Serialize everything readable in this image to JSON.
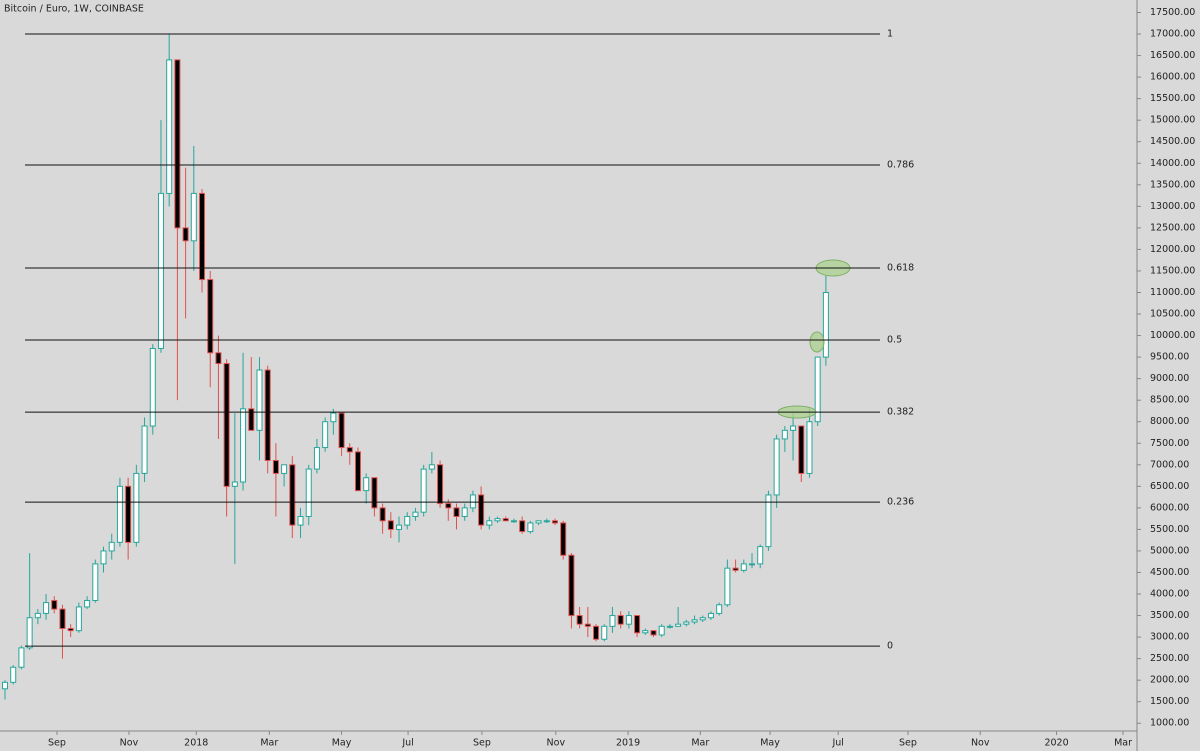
{
  "chart_data": {
    "type": "candlestick",
    "title": "Bitcoin / Euro, 1W, COINBASE",
    "up_color": "#26a69a",
    "down_color": "#e0504d",
    "open": [
      1800,
      1950,
      2300,
      2750,
      3450,
      3550,
      3850,
      3650,
      3200,
      3150,
      3700,
      3850,
      4700,
      5000,
      5200,
      6500,
      5200,
      6800,
      7900,
      9700,
      13300,
      16400,
      12500,
      12200,
      13300,
      11300,
      9600,
      9350,
      6500,
      6600,
      8300,
      7800,
      9200,
      7100,
      6800,
      7000,
      5600,
      5800,
      6900,
      7400,
      8000,
      8200,
      7400,
      7300,
      6400,
      6700,
      6000,
      5700,
      5500,
      5600,
      5800,
      5900,
      6900,
      7000,
      6100,
      6000,
      5800,
      6000,
      6300,
      5600,
      5700,
      5750,
      5700,
      5700,
      5450,
      5650,
      5700,
      5700,
      5650,
      4900,
      3500,
      3300,
      3250,
      2950,
      3250,
      3500,
      3300,
      3500,
      3100,
      3150,
      3050,
      3250,
      3250,
      3300,
      3350,
      3400,
      3450,
      3550,
      3750,
      4600,
      4550,
      4700,
      4700,
      5100,
      6300,
      7600,
      7800,
      7900,
      6800,
      8000,
      9500
    ],
    "high": [
      2000,
      2350,
      2800,
      4950,
      3650,
      4000,
      3950,
      3750,
      3300,
      3800,
      3950,
      4800,
      5100,
      5400,
      6700,
      6700,
      7000,
      8100,
      9800,
      15000,
      17000,
      16400,
      13900,
      14400,
      13400,
      11500,
      10000,
      9450,
      8200,
      9600,
      9500,
      9500,
      9300,
      7500,
      7000,
      7200,
      6000,
      7000,
      7600,
      8100,
      8300,
      8200,
      7500,
      7400,
      6800,
      6700,
      6100,
      5900,
      5800,
      5900,
      6000,
      7000,
      7300,
      7100,
      6200,
      6100,
      6100,
      6400,
      6500,
      5800,
      5800,
      5800,
      5750,
      5800,
      5700,
      5700,
      5750,
      5750,
      5700,
      4950,
      3700,
      3700,
      3300,
      3300,
      3700,
      3600,
      3600,
      3500,
      3200,
      3150,
      3300,
      3300,
      3700,
      3400,
      3500,
      3500,
      3600,
      3800,
      4800,
      4800,
      4800,
      4950,
      5150,
      6400,
      7700,
      7900,
      8200,
      7900,
      8300,
      9500,
      11400
    ],
    "low": [
      1550,
      1900,
      2250,
      2700,
      3300,
      3400,
      3550,
      2500,
      3000,
      3100,
      3650,
      3800,
      4500,
      4800,
      5100,
      4800,
      5100,
      6600,
      7700,
      9600,
      13000,
      8500,
      10400,
      11500,
      11000,
      8800,
      7600,
      5800,
      4700,
      6400,
      7800,
      7100,
      6800,
      5800,
      6500,
      5300,
      5300,
      5600,
      6800,
      7300,
      7700,
      7200,
      7000,
      6400,
      6100,
      5800,
      5400,
      5300,
      5200,
      5500,
      5700,
      5800,
      6800,
      6000,
      5700,
      5500,
      5700,
      5900,
      5500,
      5500,
      5650,
      5700,
      5650,
      5400,
      5400,
      5600,
      5650,
      5600,
      4800,
      3200,
      3200,
      3000,
      2900,
      2900,
      3100,
      3200,
      3200,
      3000,
      3050,
      3000,
      3000,
      3200,
      3250,
      3250,
      3300,
      3350,
      3400,
      3500,
      3700,
      4500,
      4500,
      4600,
      4600,
      5000,
      6000,
      7300,
      7100,
      6600,
      6700,
      7900,
      9300
    ],
    "close": [
      1950,
      2300,
      2750,
      3450,
      3550,
      3800,
      3650,
      3200,
      3150,
      3700,
      3850,
      4700,
      5000,
      5200,
      6500,
      5200,
      6800,
      7900,
      9700,
      13300,
      16400,
      12500,
      12200,
      13300,
      11300,
      9600,
      9350,
      6500,
      6600,
      8300,
      7800,
      9200,
      7100,
      6800,
      7000,
      5600,
      5800,
      6900,
      7400,
      8000,
      8200,
      7400,
      7300,
      6400,
      6700,
      6000,
      5700,
      5500,
      5600,
      5800,
      5900,
      6900,
      7000,
      6100,
      6000,
      5800,
      6000,
      6300,
      5600,
      5700,
      5750,
      5700,
      5700,
      5450,
      5650,
      5700,
      5700,
      5650,
      4900,
      3500,
      3300,
      3250,
      2950,
      3250,
      3500,
      3300,
      3500,
      3100,
      3150,
      3050,
      3250,
      3250,
      3300,
      3350,
      3400,
      3450,
      3550,
      3750,
      4600,
      4550,
      4700,
      4700,
      5100,
      6300,
      7600,
      7800,
      7900,
      6800,
      8000,
      9500,
      11000
    ],
    "xlim": [
      -0.61,
      137.9
    ],
    "xticks": [
      {
        "value": 6.33,
        "label": "Sep"
      },
      {
        "value": 15.1,
        "label": "Nov"
      },
      {
        "value": 23.3,
        "label": "2018"
      },
      {
        "value": 32.2,
        "label": "Mar"
      },
      {
        "value": 41.0,
        "label": "May"
      },
      {
        "value": 49.1,
        "label": "Jul"
      },
      {
        "value": 58.1,
        "label": "Sep"
      },
      {
        "value": 67.1,
        "label": "Nov"
      },
      {
        "value": 75.9,
        "label": "2019"
      },
      {
        "value": 84.7,
        "label": "Mar"
      },
      {
        "value": 93.2,
        "label": "May"
      },
      {
        "value": 101.5,
        "label": "Jul"
      },
      {
        "value": 110.0,
        "label": "Sep"
      },
      {
        "value": 118.8,
        "label": "Nov"
      },
      {
        "value": 128.1,
        "label": "2020"
      },
      {
        "value": 136.2,
        "label": "Mar"
      }
    ],
    "ylim": [
      820,
      17790
    ],
    "yticks": [
      {
        "value": 1000,
        "label": "1000.00"
      },
      {
        "value": 1500,
        "label": "1500.00"
      },
      {
        "value": 2000,
        "label": "2000.00"
      },
      {
        "value": 2500,
        "label": "2500.00"
      },
      {
        "value": 3000,
        "label": "3000.00"
      },
      {
        "value": 3500,
        "label": "3500.00"
      },
      {
        "value": 4000,
        "label": "4000.00"
      },
      {
        "value": 4500,
        "label": "4500.00"
      },
      {
        "value": 5000,
        "label": "5000.00"
      },
      {
        "value": 5500,
        "label": "5500.00"
      },
      {
        "value": 6000,
        "label": "6000.00"
      },
      {
        "value": 6500,
        "label": "6500.00"
      },
      {
        "value": 7000,
        "label": "7000.00"
      },
      {
        "value": 7500,
        "label": "7500.00"
      },
      {
        "value": 8000,
        "label": "8000.00"
      },
      {
        "value": 8500,
        "label": "8500.00"
      },
      {
        "value": 9000,
        "label": "9000.00"
      },
      {
        "value": 9500,
        "label": "9500.00"
      },
      {
        "value": 10000,
        "label": "10000.00"
      },
      {
        "value": 10500,
        "label": "10500.00"
      },
      {
        "value": 11000,
        "label": "11000.00"
      },
      {
        "value": 11500,
        "label": "11500.00"
      },
      {
        "value": 12000,
        "label": "12000.00"
      },
      {
        "value": 12500,
        "label": "12500.00"
      },
      {
        "value": 13000,
        "label": "13000.00"
      },
      {
        "value": 13500,
        "label": "13500.00"
      },
      {
        "value": 14000,
        "label": "14000.00"
      },
      {
        "value": 14500,
        "label": "14500.00"
      },
      {
        "value": 15000,
        "label": "15000.00"
      },
      {
        "value": 15500,
        "label": "15500.00"
      },
      {
        "value": 16000,
        "label": "16000.00"
      },
      {
        "value": 16500,
        "label": "16500.00"
      },
      {
        "value": 17000,
        "label": "17000.00"
      },
      {
        "value": 17500,
        "label": "17500.00"
      }
    ],
    "fib_levels": [
      {
        "level": 1,
        "price": 17000
      },
      {
        "level": 0.786,
        "price": 13959
      },
      {
        "level": 0.618,
        "price": 11567
      },
      {
        "level": 0.5,
        "price": 9896
      },
      {
        "level": 0.382,
        "price": 8224
      },
      {
        "level": 0.236,
        "price": 6134
      },
      {
        "level": 0,
        "price": 2791
      }
    ]
  }
}
